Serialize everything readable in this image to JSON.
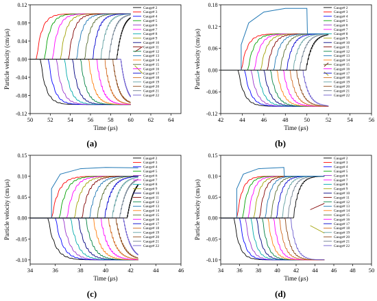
{
  "figure": {
    "panel_letters": [
      "(a)",
      "(b)",
      "(c)",
      "(d)"
    ]
  },
  "chart_data": [
    {
      "type": "line",
      "panel": "a",
      "xlabel": "Time (μs)",
      "ylabel": "Particle velocity (cm/μs)",
      "xlim": [
        50,
        65
      ],
      "ylim": [
        -0.12,
        0.12
      ],
      "xticks": [
        "50",
        "52",
        "54",
        "56",
        "58",
        "60",
        "62",
        "64"
      ],
      "yticks": [
        "-0.12",
        "-0.08",
        "-0.04",
        "0.00",
        "0.04",
        "0.08",
        "0.12"
      ],
      "legend": [
        "Gauge# 2",
        "Gauge# 3",
        "Gauge# 4",
        "Gauge# 5",
        "Gauge# 6",
        "Gauge# 7",
        "Gauge# 8",
        "Gauge# 9",
        "Gauge# 10",
        "Gauge# 11",
        "Gauge# 12",
        "Gauge# 13",
        "Gauge# 14",
        "Gauge# 15",
        "Gauge# 16",
        "Gauge# 17",
        "Gauge# 18",
        "Gauge# 19",
        "Gauge# 20",
        "Gauge# 21",
        "Gauge# 22"
      ],
      "legend_position": "right",
      "x_end": 60.0,
      "negative_onsets": [
        51.0,
        51.8,
        52.6,
        53.4,
        54.2,
        55.0,
        55.8,
        56.6,
        57.4,
        58.2,
        59.0
      ],
      "positive_onsets": [
        50.6,
        51.4,
        52.2,
        53.0,
        53.8,
        54.6,
        55.4,
        56.2,
        57.0,
        57.8,
        58.6
      ],
      "amplitude": 0.1,
      "wiggle": {
        "pos": {
          "x": [
            60.4,
            61.2
          ],
          "y": [
            0.016,
            0.028
          ]
        },
        "neg": {
          "x": [
            60.4,
            61.2
          ],
          "y": [
            -0.014,
            -0.032
          ]
        }
      }
    },
    {
      "type": "line",
      "panel": "b",
      "xlabel": "Time (μs)",
      "ylabel": "Particle velocity (cm/μs)",
      "xlim": [
        42,
        56
      ],
      "ylim": [
        -0.12,
        0.18
      ],
      "xticks": [
        "42",
        "44",
        "46",
        "48",
        "50",
        "52",
        "54",
        "56"
      ],
      "yticks": [
        "-0.12",
        "-0.06",
        "0.00",
        "0.06",
        "0.12",
        "0.18"
      ],
      "legend": [
        "Gauge# 2",
        "Gauge# 3",
        "Gauge# 4",
        "Gauge# 5",
        "Gauge# 6",
        "Gauge# 7",
        "Gauge# 8",
        "Gauge# 9",
        "Gauge# 10",
        "Gauge# 11",
        "Gauge# 12",
        "Gauge# 13",
        "Gauge# 14",
        "Gauge# 15",
        "Gauge# 16",
        "Gauge# 17",
        "Gauge# 18",
        "Gauge# 19",
        "Gauge# 20",
        "Gauge# 21",
        "Gauge# 22"
      ],
      "legend_position": "right",
      "x_end": 52.0,
      "negative_onsets": [
        43.6,
        44.2,
        44.8,
        45.4,
        46.0,
        46.6,
        47.2,
        47.8,
        48.4,
        49.0,
        49.6
      ],
      "positive_onsets": [
        43.9,
        44.5,
        45.1,
        45.7,
        46.3,
        46.9,
        47.5,
        48.1,
        48.7,
        49.3,
        49.9
      ],
      "amplitude": 0.1,
      "peak_curve": {
        "x": [
          43.9,
          44.6,
          46.0,
          48.0,
          50.0,
          50.05,
          52.0
        ],
        "y": [
          0.07,
          0.13,
          0.16,
          0.17,
          0.17,
          0.1,
          0.1
        ]
      },
      "wiggle": {
        "pos": {
          "x": [
            51.6,
            52.0
          ],
          "y": [
            0.01,
            0.02
          ]
        },
        "neg": {
          "x": [
            51.6,
            52.0
          ],
          "y": [
            -0.005,
            -0.015
          ]
        }
      }
    },
    {
      "type": "line",
      "panel": "c",
      "xlabel": "Time (μs)",
      "ylabel": "Particle velocity (cm/μs)",
      "xlim": [
        34,
        46
      ],
      "ylim": [
        -0.11,
        0.15
      ],
      "xticks": [
        "34",
        "36",
        "38",
        "40",
        "42",
        "44",
        "46"
      ],
      "yticks": [
        "-0.10",
        "-0.05",
        "0.00",
        "0.05",
        "0.10",
        "0.15"
      ],
      "legend": [
        "Gauge# 2",
        "Gauge# 3",
        "Gauge# 4",
        "Gauge# 5",
        "Gauge# 6",
        "Gauge# 7",
        "Gauge# 8",
        "Gauge# 9",
        "Gauge# 10",
        "Gauge# 11",
        "Gauge# 12",
        "Gauge# 13",
        "Gauge# 14",
        "Gauge# 15",
        "Gauge# 16",
        "Gauge# 17",
        "Gauge# 18",
        "Gauge# 19",
        "Gauge# 20",
        "Gauge# 21",
        "Gauge# 22"
      ],
      "legend_position": "right",
      "x_end": 42.6,
      "negative_onsets": [
        35.4,
        36.0,
        36.6,
        37.2,
        37.8,
        38.4,
        39.0,
        39.6,
        40.2,
        40.8,
        41.4
      ],
      "positive_onsets": [
        35.7,
        36.3,
        36.9,
        37.5,
        38.1,
        38.7,
        39.3,
        39.9,
        40.5,
        41.1,
        41.7
      ],
      "amplitude": 0.1,
      "peak_curve": {
        "x": [
          35.7,
          36.4,
          38.0,
          40.0,
          42.6
        ],
        "y": [
          0.07,
          0.105,
          0.118,
          0.121,
          0.12
        ]
      },
      "wiggle": null
    },
    {
      "type": "line",
      "panel": "d",
      "xlabel": "Time (μs)",
      "ylabel": "Particle velocity (cm/μs)",
      "xlim": [
        34,
        50
      ],
      "ylim": [
        -0.11,
        0.15
      ],
      "xticks": [
        "34",
        "36",
        "38",
        "40",
        "42",
        "44",
        "46",
        "48",
        "50"
      ],
      "yticks": [
        "-0.10",
        "-0.05",
        "0.00",
        "0.05",
        "0.10",
        "0.15"
      ],
      "legend": [
        "Gauge# 2",
        "Gauge# 3",
        "Gauge# 4",
        "Gauge# 5",
        "Gauge# 6",
        "Gauge# 7",
        "Gauge# 8",
        "Gauge# 9",
        "Gauge# 10",
        "Gauge# 11",
        "Gauge# 12",
        "Gauge# 13",
        "Gauge# 14",
        "Gauge# 15",
        "Gauge# 16",
        "Gauge# 17",
        "Gauge# 18",
        "Gauge# 19",
        "Gauge# 20",
        "Gauge# 21",
        "Gauge# 22"
      ],
      "legend_position": "right",
      "x_end": 45.0,
      "negative_onsets": [
        35.4,
        36.0,
        36.6,
        37.2,
        37.8,
        38.4,
        39.0,
        39.6,
        40.2,
        40.8,
        41.4
      ],
      "positive_onsets": [
        35.7,
        36.3,
        36.9,
        37.5,
        38.1,
        38.7,
        39.3,
        39.9,
        40.5,
        41.1,
        41.7
      ],
      "amplitude": 0.1,
      "peak_curve": {
        "x": [
          35.7,
          36.4,
          38.0,
          40.7,
          40.75,
          45.0
        ],
        "y": [
          0.07,
          0.105,
          0.118,
          0.121,
          0.1,
          0.1
        ]
      },
      "wiggle": {
        "pos": {
          "x": [
            43.5,
            45.0
          ],
          "y": [
            0.02,
            0.035
          ]
        },
        "neg": {
          "x": [
            43.5,
            45.0
          ],
          "y": [
            -0.018,
            -0.036
          ]
        }
      }
    }
  ],
  "colors": [
    "#000000",
    "#ff0000",
    "#0000ff",
    "#00a000",
    "#9933cc",
    "#ff00ff",
    "#00aaaa",
    "#a0a000",
    "#000080",
    "#800000",
    "#008040",
    "#1f77b4",
    "#ff7f0e",
    "#556b2f",
    "#ff00ff",
    "#0000cd",
    "#d2691e",
    "#5f9ea0",
    "#8b4513",
    "#708090",
    "#6a5acd"
  ]
}
